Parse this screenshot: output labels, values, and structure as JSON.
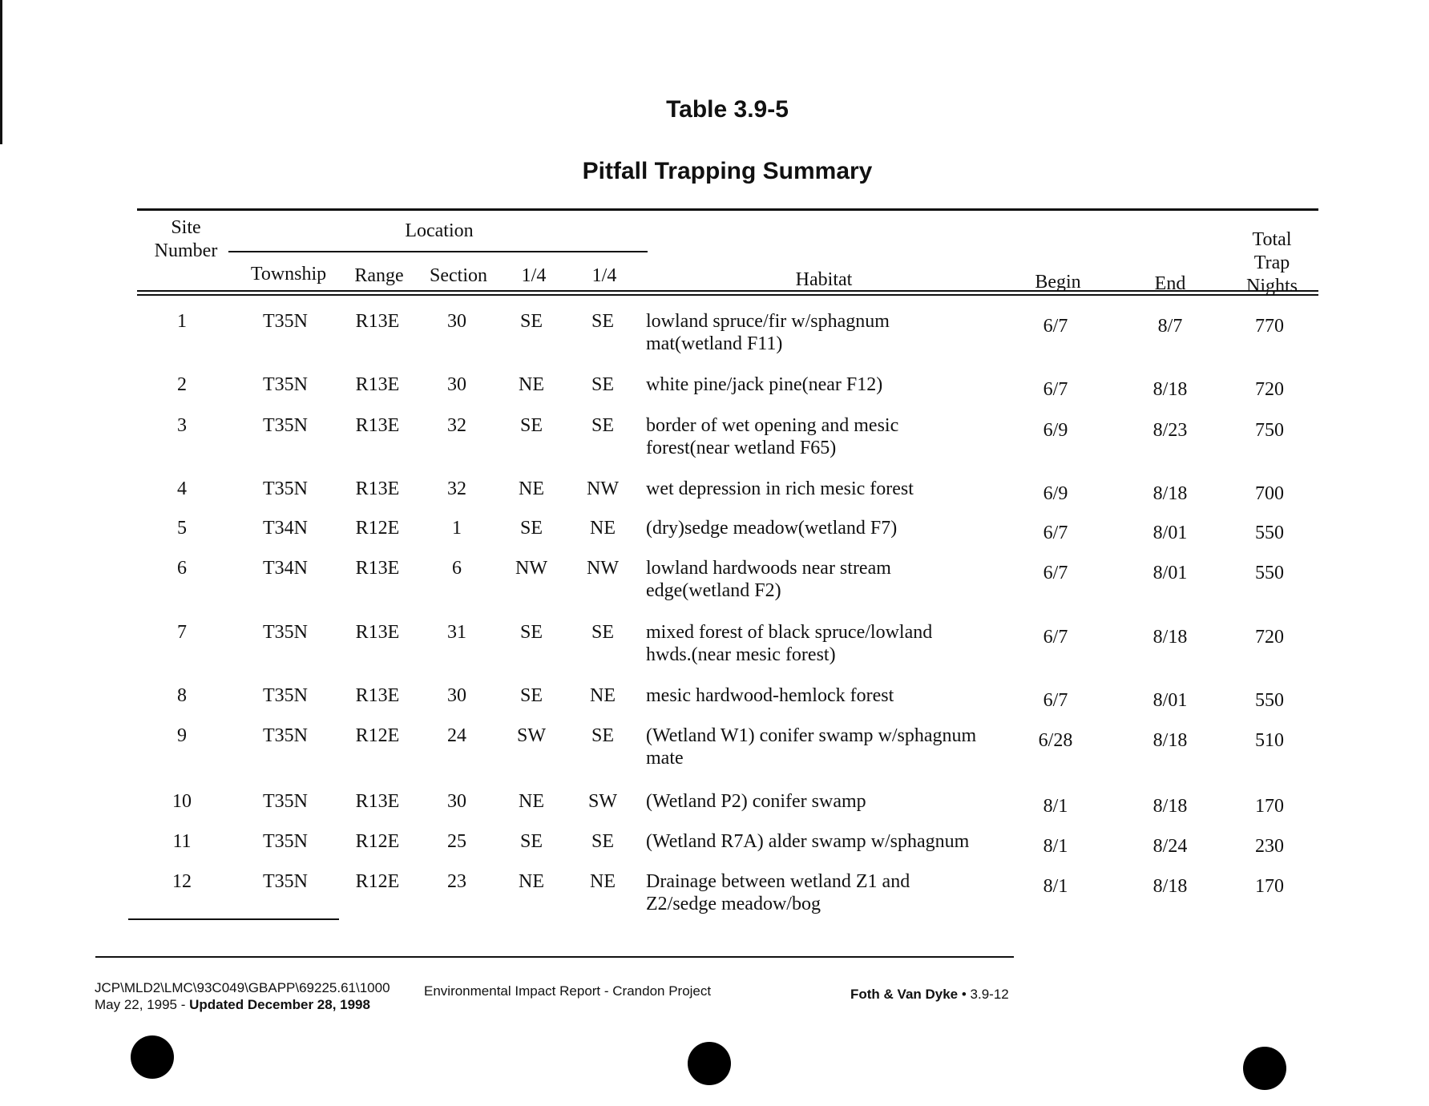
{
  "title": "Table 3.9-5",
  "subtitle": "Pitfall Trapping Summary",
  "headers": {
    "site": "Site\nNumber",
    "location": "Location",
    "township": "Township",
    "range": "Range",
    "section": "Section",
    "q1": "1/4",
    "q2": "1/4",
    "habitat": "Habitat",
    "begin": "Begin",
    "end": "End",
    "total": "Total\nTrap\nNights"
  },
  "rows": [
    {
      "site": "1",
      "township": "T35N",
      "range": "R13E",
      "section": "30",
      "q1": "SE",
      "q2": "SE",
      "habitat": "lowland spruce/fir w/sphagnum\nmat(wetland F11)",
      "begin": "6/7",
      "end": "8/7",
      "total": "770"
    },
    {
      "site": "2",
      "township": "T35N",
      "range": "R13E",
      "section": "30",
      "q1": "NE",
      "q2": "SE",
      "habitat": "white pine/jack pine(near F12)",
      "begin": "6/7",
      "end": "8/18",
      "total": "720"
    },
    {
      "site": "3",
      "township": "T35N",
      "range": "R13E",
      "section": "32",
      "q1": "SE",
      "q2": "SE",
      "habitat": "border of wet opening and mesic\nforest(near wetland F65)",
      "begin": "6/9",
      "end": "8/23",
      "total": "750"
    },
    {
      "site": "4",
      "township": "T35N",
      "range": "R13E",
      "section": "32",
      "q1": "NE",
      "q2": "NW",
      "habitat": "wet depression in rich mesic forest",
      "begin": "6/9",
      "end": "8/18",
      "total": "700"
    },
    {
      "site": "5",
      "township": "T34N",
      "range": "R12E",
      "section": "1",
      "q1": "SE",
      "q2": "NE",
      "habitat": "(dry)sedge meadow(wetland F7)",
      "begin": "6/7",
      "end": "8/01",
      "total": "550"
    },
    {
      "site": "6",
      "township": "T34N",
      "range": "R13E",
      "section": "6",
      "q1": "NW",
      "q2": "NW",
      "habitat": "lowland hardwoods near stream\nedge(wetland F2)",
      "begin": "6/7",
      "end": "8/01",
      "total": "550"
    },
    {
      "site": "7",
      "township": "T35N",
      "range": "R13E",
      "section": "31",
      "q1": "SE",
      "q2": "SE",
      "habitat": "mixed forest of black spruce/lowland\nhwds.(near mesic forest)",
      "begin": "6/7",
      "end": "8/18",
      "total": "720"
    },
    {
      "site": "8",
      "township": "T35N",
      "range": "R13E",
      "section": "30",
      "q1": "SE",
      "q2": "NE",
      "habitat": "mesic hardwood-hemlock forest",
      "begin": "6/7",
      "end": "8/01",
      "total": "550"
    },
    {
      "site": "9",
      "township": "T35N",
      "range": "R12E",
      "section": "24",
      "q1": "SW",
      "q2": "SE",
      "habitat": "(Wetland W1) conifer swamp w/sphagnum\nmate",
      "begin": "6/28",
      "end": "8/18",
      "total": "510"
    },
    {
      "site": "10",
      "township": "T35N",
      "range": "R13E",
      "section": "30",
      "q1": "NE",
      "q2": "SW",
      "habitat": "(Wetland P2) conifer swamp",
      "begin": "8/1",
      "end": "8/18",
      "total": "170"
    },
    {
      "site": "11",
      "township": "T35N",
      "range": "R12E",
      "section": "25",
      "q1": "SE",
      "q2": "SE",
      "habitat": "(Wetland R7A) alder swamp w/sphagnum",
      "begin": "8/1",
      "end": "8/24",
      "total": "230"
    },
    {
      "site": "12",
      "township": "T35N",
      "range": "R12E",
      "section": "23",
      "q1": "NE",
      "q2": "NE",
      "habitat": "Drainage between wetland Z1 and\nZ2/sedge meadow/bog",
      "begin": "8/1",
      "end": "8/18",
      "total": "170"
    }
  ],
  "footer": {
    "path": "JCP\\MLD2\\LMC\\93C049\\GBAPP\\69225.61\\1000",
    "date": "May 22, 1995 - ",
    "updated": "Updated December 28, 1998",
    "report": "Environmental Impact Report - Crandon Project",
    "company": "Foth & Van Dyke",
    "page": " • 3.9-12"
  }
}
